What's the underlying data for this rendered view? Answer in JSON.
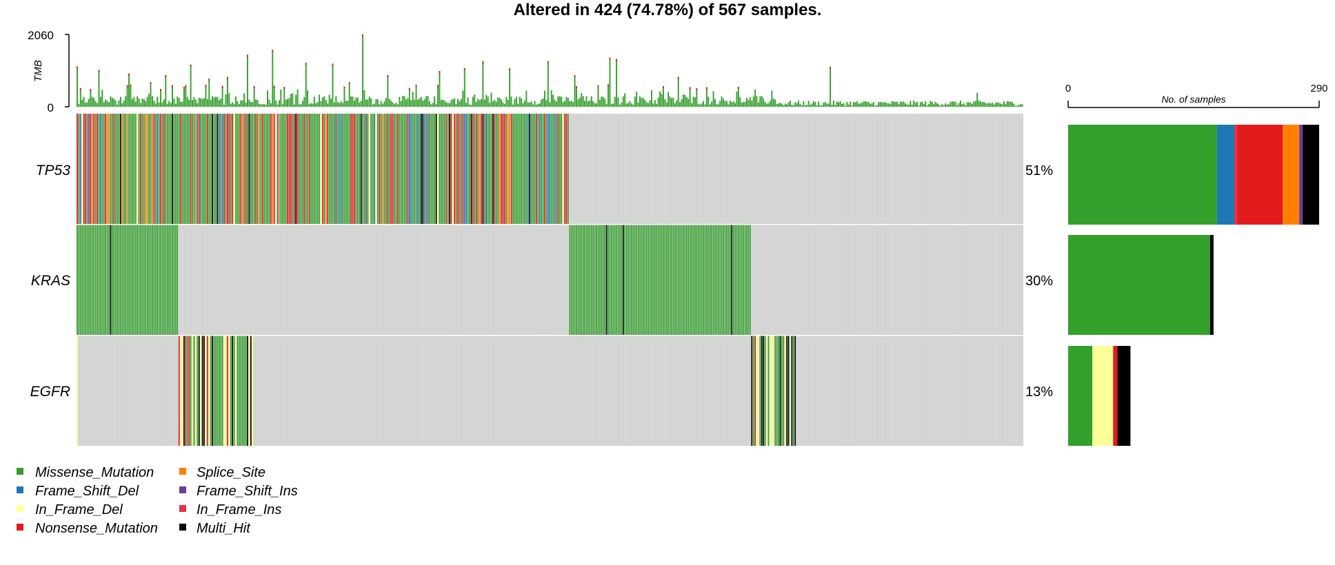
{
  "chart_data": {
    "type": "oncoplot",
    "title": "Altered in 424 (74.78%) of 567 samples.",
    "tmb_axis": {
      "label": "TMB",
      "ylim": [
        0,
        2060
      ],
      "tick_labels": [
        "0",
        "2060"
      ]
    },
    "genes": [
      {
        "name": "TP53",
        "percent_label": "51%",
        "barplot": [
          {
            "type": "Missense_Mutation",
            "value": 172
          },
          {
            "type": "Frame_Shift_Del",
            "value": 20
          },
          {
            "type": "In_Frame_Ins",
            "value": 3
          },
          {
            "type": "Nonsense_Mutation",
            "value": 53
          },
          {
            "type": "Splice_Site",
            "value": 19
          },
          {
            "type": "Frame_Shift_Ins",
            "value": 4
          },
          {
            "type": "Multi_Hit",
            "value": 19
          }
        ]
      },
      {
        "name": "KRAS",
        "percent_label": "30%",
        "barplot": [
          {
            "type": "Missense_Mutation",
            "value": 164
          },
          {
            "type": "Multi_Hit",
            "value": 4
          }
        ]
      },
      {
        "name": "EGFR",
        "percent_label": "13%",
        "barplot": [
          {
            "type": "Missense_Mutation",
            "value": 28
          },
          {
            "type": "In_Frame_Del",
            "value": 24
          },
          {
            "type": "Nonsense_Mutation",
            "value": 5
          },
          {
            "type": "Multi_Hit",
            "value": 15
          }
        ]
      }
    ],
    "samples_axis": {
      "label": "No. of samples",
      "xlim": [
        0,
        290
      ],
      "tick_labels": [
        "0",
        "290"
      ]
    },
    "legend": [
      {
        "label": "Missense_Mutation",
        "color": "#33a02c"
      },
      {
        "label": "Frame_Shift_Del",
        "color": "#1f78b4"
      },
      {
        "label": "In_Frame_Del",
        "color": "#ffff99"
      },
      {
        "label": "Nonsense_Mutation",
        "color": "#e31a1c"
      },
      {
        "label": "Splice_Site",
        "color": "#ff7f00"
      },
      {
        "label": "Frame_Shift_Ins",
        "color": "#6a3d9a"
      },
      {
        "label": "In_Frame_Ins",
        "color": "#dc3545"
      },
      {
        "label": "Multi_Hit",
        "color": "#000000"
      }
    ],
    "background_color": "#d3d3d3"
  }
}
